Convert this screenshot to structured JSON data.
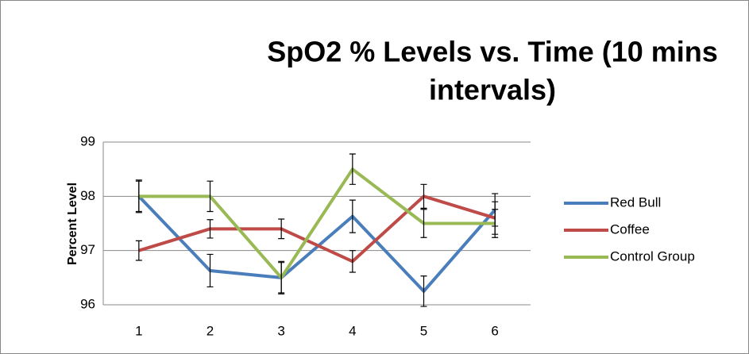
{
  "chart_data": {
    "type": "line",
    "title": [
      "SpO2 % Levels vs. Time  (10 mins",
      "intervals)"
    ],
    "y_label": "Percent Level",
    "categories": [
      "1",
      "2",
      "3",
      "4",
      "5",
      "6"
    ],
    "ylim": [
      96,
      99
    ],
    "yticks": [
      96,
      97,
      98,
      99
    ],
    "grid": true,
    "legend": "right",
    "series": [
      {
        "name": "Red Bull",
        "color": "#4a7ebb",
        "values": [
          98,
          96.63,
          96.5,
          97.63,
          96.25,
          97.75
        ],
        "errors": [
          0.3,
          0.3,
          0.28,
          0.3,
          0.28,
          0.3
        ]
      },
      {
        "name": "Coffee",
        "color": "#be4b48",
        "values": [
          97,
          97.4,
          97.4,
          96.8,
          98,
          97.6
        ],
        "errors": [
          0.18,
          0.17,
          0.18,
          0.2,
          0.22,
          0.3
        ]
      },
      {
        "name": "Control Group",
        "color": "#98b954",
        "values": [
          98,
          98,
          96.5,
          98.5,
          97.5,
          97.5
        ],
        "errors": [
          0.28,
          0.28,
          0.3,
          0.28,
          0.26,
          0.26
        ]
      }
    ]
  }
}
